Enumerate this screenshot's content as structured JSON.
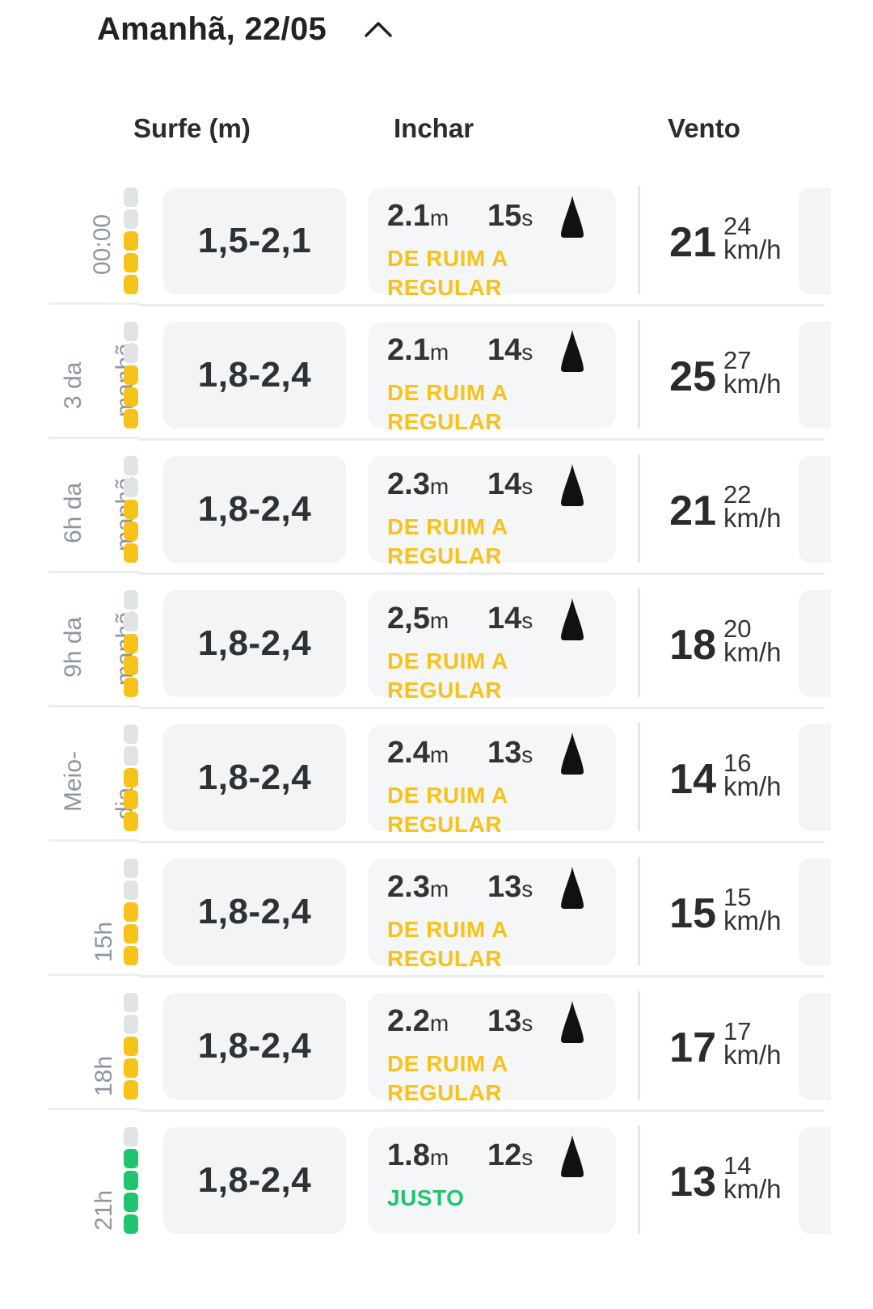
{
  "header": {
    "title": "Amanhã, 22/05",
    "chevron_icon": "chevron-up-icon"
  },
  "columns": {
    "surf": "Surfe (m)",
    "swell": "Inchar",
    "wind": "Vento"
  },
  "colors": {
    "fair": "#f7c31a",
    "good": "#1ec56e",
    "empty": "#e1e4e7"
  },
  "rows": [
    {
      "time": [
        "00:00"
      ],
      "filled": 3,
      "level": "fair",
      "surf": "1,5-2,1",
      "height": "2.1",
      "height_unit": "m",
      "period": "15",
      "period_unit": "s",
      "rating": "DE RUIM A REGULAR",
      "wind": "21",
      "gust": "24",
      "unit": "km/h"
    },
    {
      "time": [
        "3 da",
        "manhã"
      ],
      "filled": 3,
      "level": "fair",
      "surf": "1,8-2,4",
      "height": "2.1",
      "height_unit": "m",
      "period": "14",
      "period_unit": "s",
      "rating": "DE RUIM A REGULAR",
      "wind": "25",
      "gust": "27",
      "unit": "km/h"
    },
    {
      "time": [
        "6h da",
        "manhã"
      ],
      "filled": 3,
      "level": "fair",
      "surf": "1,8-2,4",
      "height": "2.3",
      "height_unit": "m",
      "period": "14",
      "period_unit": "s",
      "rating": "DE RUIM A REGULAR",
      "wind": "21",
      "gust": "22",
      "unit": "km/h"
    },
    {
      "time": [
        "9h da",
        "manhã"
      ],
      "filled": 3,
      "level": "fair",
      "surf": "1,8-2,4",
      "height": "2,5",
      "height_unit": "m",
      "period": "14",
      "period_unit": "s",
      "rating": "DE RUIM A REGULAR",
      "wind": "18",
      "gust": "20",
      "unit": "km/h"
    },
    {
      "time": [
        "Meio-",
        "dia"
      ],
      "filled": 3,
      "level": "fair",
      "surf": "1,8-2,4",
      "height": "2.4",
      "height_unit": "m",
      "period": "13",
      "period_unit": "s",
      "rating": "DE RUIM A REGULAR",
      "wind": "14",
      "gust": "16",
      "unit": "km/h"
    },
    {
      "time": [
        "15h"
      ],
      "filled": 3,
      "level": "fair",
      "surf": "1,8-2,4",
      "height": "2.3",
      "height_unit": "m",
      "period": "13",
      "period_unit": "s",
      "rating": "DE RUIM A REGULAR",
      "wind": "15",
      "gust": "15",
      "unit": "km/h"
    },
    {
      "time": [
        "18h"
      ],
      "filled": 3,
      "level": "fair",
      "surf": "1,8-2,4",
      "height": "2.2",
      "height_unit": "m",
      "period": "13",
      "period_unit": "s",
      "rating": "DE RUIM A REGULAR",
      "wind": "17",
      "gust": "17",
      "unit": "km/h"
    },
    {
      "time": [
        "21h"
      ],
      "filled": 4,
      "level": "good",
      "surf": "1,8-2,4",
      "height": "1.8",
      "height_unit": "m",
      "period": "12",
      "period_unit": "s",
      "rating": "JUSTO",
      "wind": "13",
      "gust": "14",
      "unit": "km/h"
    }
  ]
}
